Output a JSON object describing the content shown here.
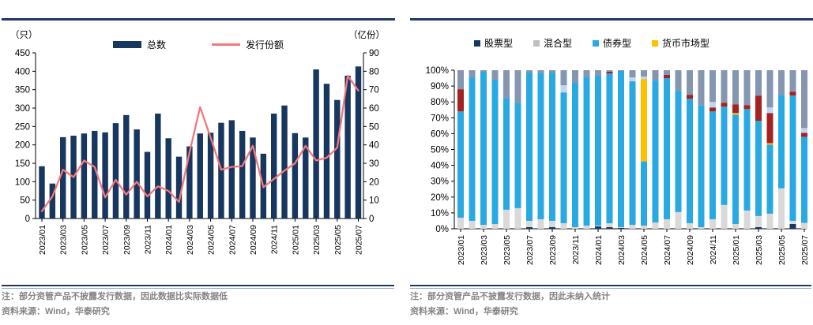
{
  "chart_data": [
    {
      "type": "bar+line",
      "panel": "left",
      "unit_left": "（只）",
      "unit_right": "（亿份）",
      "legend": [
        "总数",
        "发行份额"
      ],
      "x": [
        "2023/01",
        "2023/02",
        "2023/03",
        "2023/04",
        "2023/05",
        "2023/06",
        "2023/07",
        "2023/08",
        "2023/09",
        "2023/10",
        "2023/11",
        "2023/12",
        "2024/01",
        "2024/02",
        "2024/03",
        "2024/04",
        "2024/05",
        "2024/06",
        "2024/07",
        "2024/08",
        "2024/09",
        "2024/10",
        "2024/11",
        "2024/12",
        "2025/01",
        "2025/02",
        "2025/03",
        "2025/04",
        "2025/05",
        "2025/06",
        "2025/07"
      ],
      "x_tick_labels": [
        "2023/01",
        "2023/03",
        "2023/05",
        "2023/07",
        "2023/09",
        "2023/11",
        "2024/01",
        "2024/03",
        "2024/05",
        "2024/07",
        "2024/09",
        "2024/11",
        "2025/01",
        "2025/03",
        "2025/05",
        "2025/07"
      ],
      "y_left": {
        "min": 0,
        "max": 450,
        "step": 50
      },
      "y_right": {
        "min": 0,
        "max": 90,
        "step": 10
      },
      "series": [
        {
          "name": "总数",
          "type": "bar",
          "axis": "left",
          "color": "#17375E",
          "values": [
            142,
            95,
            221,
            225,
            231,
            238,
            234,
            259,
            281,
            242,
            181,
            285,
            218,
            168,
            196,
            231,
            233,
            260,
            267,
            238,
            220,
            176,
            285,
            307,
            232,
            220,
            405,
            366,
            322,
            388,
            413
          ]
        },
        {
          "name": "发行份额",
          "type": "line",
          "axis": "right",
          "color": "#F4777B",
          "values": [
            4,
            12,
            26.5,
            22.5,
            31.5,
            28,
            11.5,
            21,
            13,
            20,
            12,
            17.5,
            15,
            9,
            36,
            60.5,
            44,
            26.5,
            28,
            28.5,
            39.5,
            17,
            21.5,
            26,
            30,
            39.5,
            31.5,
            33,
            38.5,
            77.5,
            69.5
          ]
        }
      ],
      "note": "注：部分资管产品不披露发行数据，因此数据比实际数据低",
      "source": "资料来源：Wind，华泰研究"
    },
    {
      "type": "stacked-bar-100",
      "panel": "right",
      "legend": [
        "股票型",
        "混合型",
        "债券型",
        "货币市场型"
      ],
      "legend_colors": [
        "#17375E",
        "#BFBFBF",
        "#29A9E1",
        "#FFC000"
      ],
      "x": [
        "2023/01",
        "2023/02",
        "2023/03",
        "2023/04",
        "2023/05",
        "2023/06",
        "2023/07",
        "2023/08",
        "2023/09",
        "2023/10",
        "2023/11",
        "2023/12",
        "2024/01",
        "2024/02",
        "2024/03",
        "2024/04",
        "2024/05",
        "2024/06",
        "2024/07",
        "2024/08",
        "2024/09",
        "2024/10",
        "2024/11",
        "2024/12",
        "2025/01",
        "2025/02",
        "2025/03",
        "2025/04",
        "2025/05",
        "2025/06",
        "2025/07"
      ],
      "x_tick_labels": [
        "2023/01",
        "2023/03",
        "2023/05",
        "2023/07",
        "2023/09",
        "2023/11",
        "2024/01",
        "2024/03",
        "2024/05",
        "2024/07",
        "2024/09",
        "2024/11",
        "2025/01",
        "2025/03",
        "2025/05",
        "2025/07"
      ],
      "y": {
        "min": 0,
        "max": 100,
        "step": 10,
        "format": "percent"
      },
      "series": [
        {
          "name": "股票型",
          "color": "#17375E",
          "values": [
            0,
            0,
            0,
            0,
            0,
            0,
            1,
            0,
            1,
            0,
            0,
            0,
            1.5,
            1,
            0.5,
            0,
            0,
            0,
            0,
            0,
            0,
            0,
            0,
            0,
            0,
            0,
            1,
            0,
            0,
            3,
            0
          ]
        },
        {
          "name": "混合型",
          "color": "#D9D9D9",
          "values": [
            7,
            5,
            2.5,
            3,
            12,
            13,
            4,
            6,
            4,
            3.5,
            1,
            2,
            0.5,
            2.5,
            0.5,
            2.5,
            2,
            4,
            6,
            10.5,
            3.5,
            1,
            6,
            15,
            3,
            11.5,
            7,
            9.5,
            25.5,
            2,
            3.7
          ]
        },
        {
          "name": "债券型",
          "color": "#29A9E1",
          "values": [
            67,
            90.5,
            96.5,
            91,
            70.5,
            66.5,
            93.5,
            92,
            93.5,
            82.5,
            91,
            93.5,
            94.5,
            94.5,
            98.5,
            90.5,
            40.5,
            89.5,
            89,
            76.5,
            78.5,
            77,
            68,
            62,
            69,
            64,
            60,
            43.5,
            59,
            79,
            54.3
          ]
        },
        {
          "name": "货币市场型",
          "color": "#FFC000",
          "values": [
            0,
            0,
            0,
            0,
            0,
            0,
            0,
            0,
            0,
            0,
            0,
            0,
            0,
            0,
            0,
            0,
            52,
            0,
            0,
            0,
            0,
            0,
            0,
            0,
            1,
            0,
            0,
            1,
            0,
            0,
            0
          ]
        },
        {
          "name": "",
          "color": "#A32323",
          "values": [
            14,
            0,
            0,
            0,
            0,
            0,
            0,
            0,
            0,
            0,
            0,
            0,
            0,
            1,
            0,
            0,
            0,
            0,
            2,
            0,
            2.5,
            0,
            2.5,
            2.5,
            5.5,
            2.5,
            16,
            19,
            0,
            2.5,
            2.5
          ]
        },
        {
          "name": "",
          "color": "#BDD7EE",
          "values": [
            0,
            0,
            0,
            0,
            0,
            0,
            0,
            0,
            0,
            4.5,
            0,
            0,
            0,
            0,
            0,
            2.5,
            1.5,
            0,
            0,
            0,
            0,
            0,
            3.5,
            0,
            0,
            0,
            0,
            3.5,
            0,
            0,
            3
          ]
        },
        {
          "name": "",
          "color": "#8496B0",
          "values": [
            12,
            4.5,
            1,
            6,
            17.5,
            20.5,
            1.5,
            2,
            1.5,
            9.5,
            8,
            4.5,
            3.5,
            1,
            0.5,
            4.5,
            4,
            6.5,
            3,
            13,
            15.5,
            22,
            20,
            20.5,
            21.5,
            22,
            16,
            23.5,
            15.5,
            13.5,
            36.5
          ]
        }
      ],
      "note": "注：部分资管产品不披露发行数据，因此未纳入统计",
      "source": "资料来源：Wind，华泰研究"
    }
  ]
}
